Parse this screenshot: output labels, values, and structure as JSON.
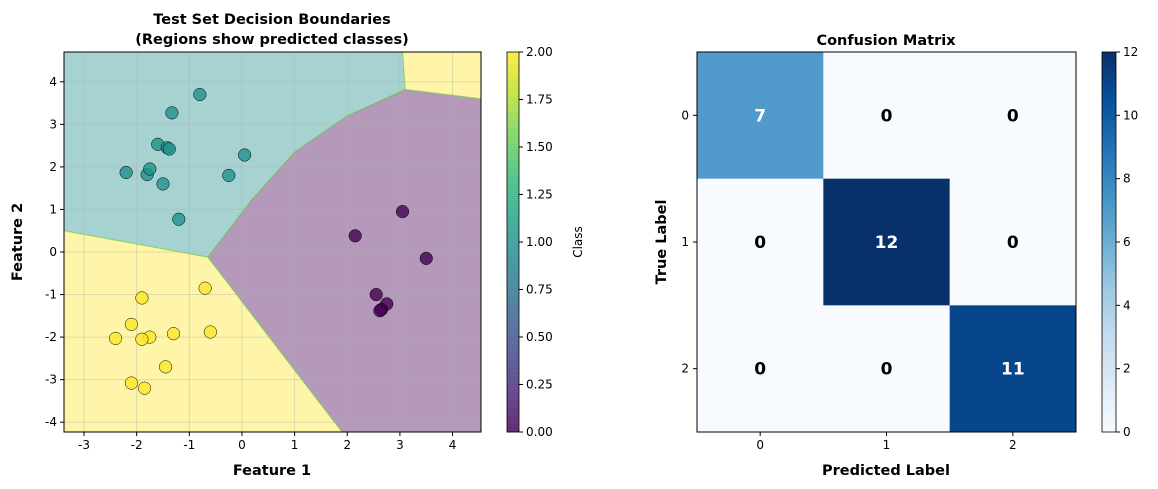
{
  "chart_data": [
    {
      "type": "scatter",
      "title_line1": "Test Set Decision Boundaries",
      "title_line2": "(Regions show predicted classes)",
      "xlabel": "Feature 1",
      "ylabel": "Feature 2",
      "xlim": [
        -3.38,
        4.54
      ],
      "ylim": [
        -4.23,
        4.7
      ],
      "xticks": [
        -3,
        -2,
        -1,
        0,
        1,
        2,
        3,
        4
      ],
      "yticks": [
        -4,
        -3,
        -2,
        -1,
        0,
        1,
        2,
        3,
        4
      ],
      "grid": true,
      "colormap": "viridis",
      "regions": [
        {
          "class": 1,
          "color": "#21918c",
          "polygon": [
            [
              -3.38,
              4.7
            ],
            [
              3.05,
              4.7
            ],
            [
              3.1,
              3.82
            ],
            [
              2.0,
              3.2
            ],
            [
              1.0,
              2.35
            ],
            [
              0.2,
              1.25
            ],
            [
              -0.65,
              -0.12
            ],
            [
              -3.38,
              0.5
            ]
          ]
        },
        {
          "class": 0,
          "color": "#440154",
          "polygon": [
            [
              -0.65,
              -0.12
            ],
            [
              0.2,
              1.25
            ],
            [
              1.0,
              2.35
            ],
            [
              2.0,
              3.2
            ],
            [
              3.1,
              3.82
            ],
            [
              4.54,
              3.6
            ],
            [
              4.54,
              -4.23
            ],
            [
              1.9,
              -4.23
            ]
          ]
        },
        {
          "class": 2,
          "color": "#fde725",
          "polygon": [
            [
              -3.38,
              0.5
            ],
            [
              -0.65,
              -0.12
            ],
            [
              1.9,
              -4.23
            ],
            [
              -3.38,
              -4.23
            ]
          ]
        },
        {
          "class": 2,
          "color": "#fde725",
          "polygon": [
            [
              3.05,
              4.7
            ],
            [
              4.54,
              4.7
            ],
            [
              4.54,
              3.6
            ],
            [
              3.1,
              3.82
            ]
          ]
        }
      ],
      "series": [
        {
          "class": 1,
          "color": "#21918c",
          "points": [
            [
              -0.8,
              3.7
            ],
            [
              -1.33,
              3.27
            ],
            [
              -1.6,
              2.53
            ],
            [
              -1.42,
              2.45
            ],
            [
              -1.38,
              2.42
            ],
            [
              0.05,
              2.28
            ],
            [
              -2.2,
              1.87
            ],
            [
              -1.8,
              1.82
            ],
            [
              -1.75,
              1.95
            ],
            [
              -1.5,
              1.6
            ],
            [
              -0.25,
              1.8
            ],
            [
              -1.2,
              0.77
            ]
          ]
        },
        {
          "class": 0,
          "color": "#440154",
          "points": [
            [
              3.05,
              0.95
            ],
            [
              2.15,
              0.38
            ],
            [
              3.5,
              -0.15
            ],
            [
              2.55,
              -1.0
            ],
            [
              2.75,
              -1.22
            ],
            [
              2.65,
              -1.35
            ],
            [
              2.62,
              -1.38
            ]
          ]
        },
        {
          "class": 2,
          "color": "#fde725",
          "points": [
            [
              -0.7,
              -0.85
            ],
            [
              -1.9,
              -1.08
            ],
            [
              -2.1,
              -1.7
            ],
            [
              -1.75,
              -2.0
            ],
            [
              -2.4,
              -2.03
            ],
            [
              -1.9,
              -2.05
            ],
            [
              -1.3,
              -1.92
            ],
            [
              -0.6,
              -1.88
            ],
            [
              -1.45,
              -2.7
            ],
            [
              -2.1,
              -3.08
            ],
            [
              -1.85,
              -3.2
            ]
          ]
        }
      ],
      "colorbar": {
        "label": "Class",
        "range": [
          0,
          2
        ],
        "ticks": [
          "0.00",
          "0.25",
          "0.50",
          "0.75",
          "1.00",
          "1.25",
          "1.50",
          "1.75",
          "2.00"
        ]
      }
    },
    {
      "type": "heatmap",
      "title": "Confusion Matrix",
      "xlabel": "Predicted Label",
      "ylabel": "True Label",
      "xticks": [
        "0",
        "1",
        "2"
      ],
      "yticks": [
        "0",
        "1",
        "2"
      ],
      "colormap": "Blues",
      "matrix": [
        [
          7,
          0,
          0
        ],
        [
          0,
          12,
          0
        ],
        [
          0,
          0,
          11
        ]
      ],
      "colorbar": {
        "range": [
          0,
          12
        ],
        "ticks": [
          "0",
          "2",
          "4",
          "6",
          "8",
          "10",
          "12"
        ]
      }
    }
  ]
}
